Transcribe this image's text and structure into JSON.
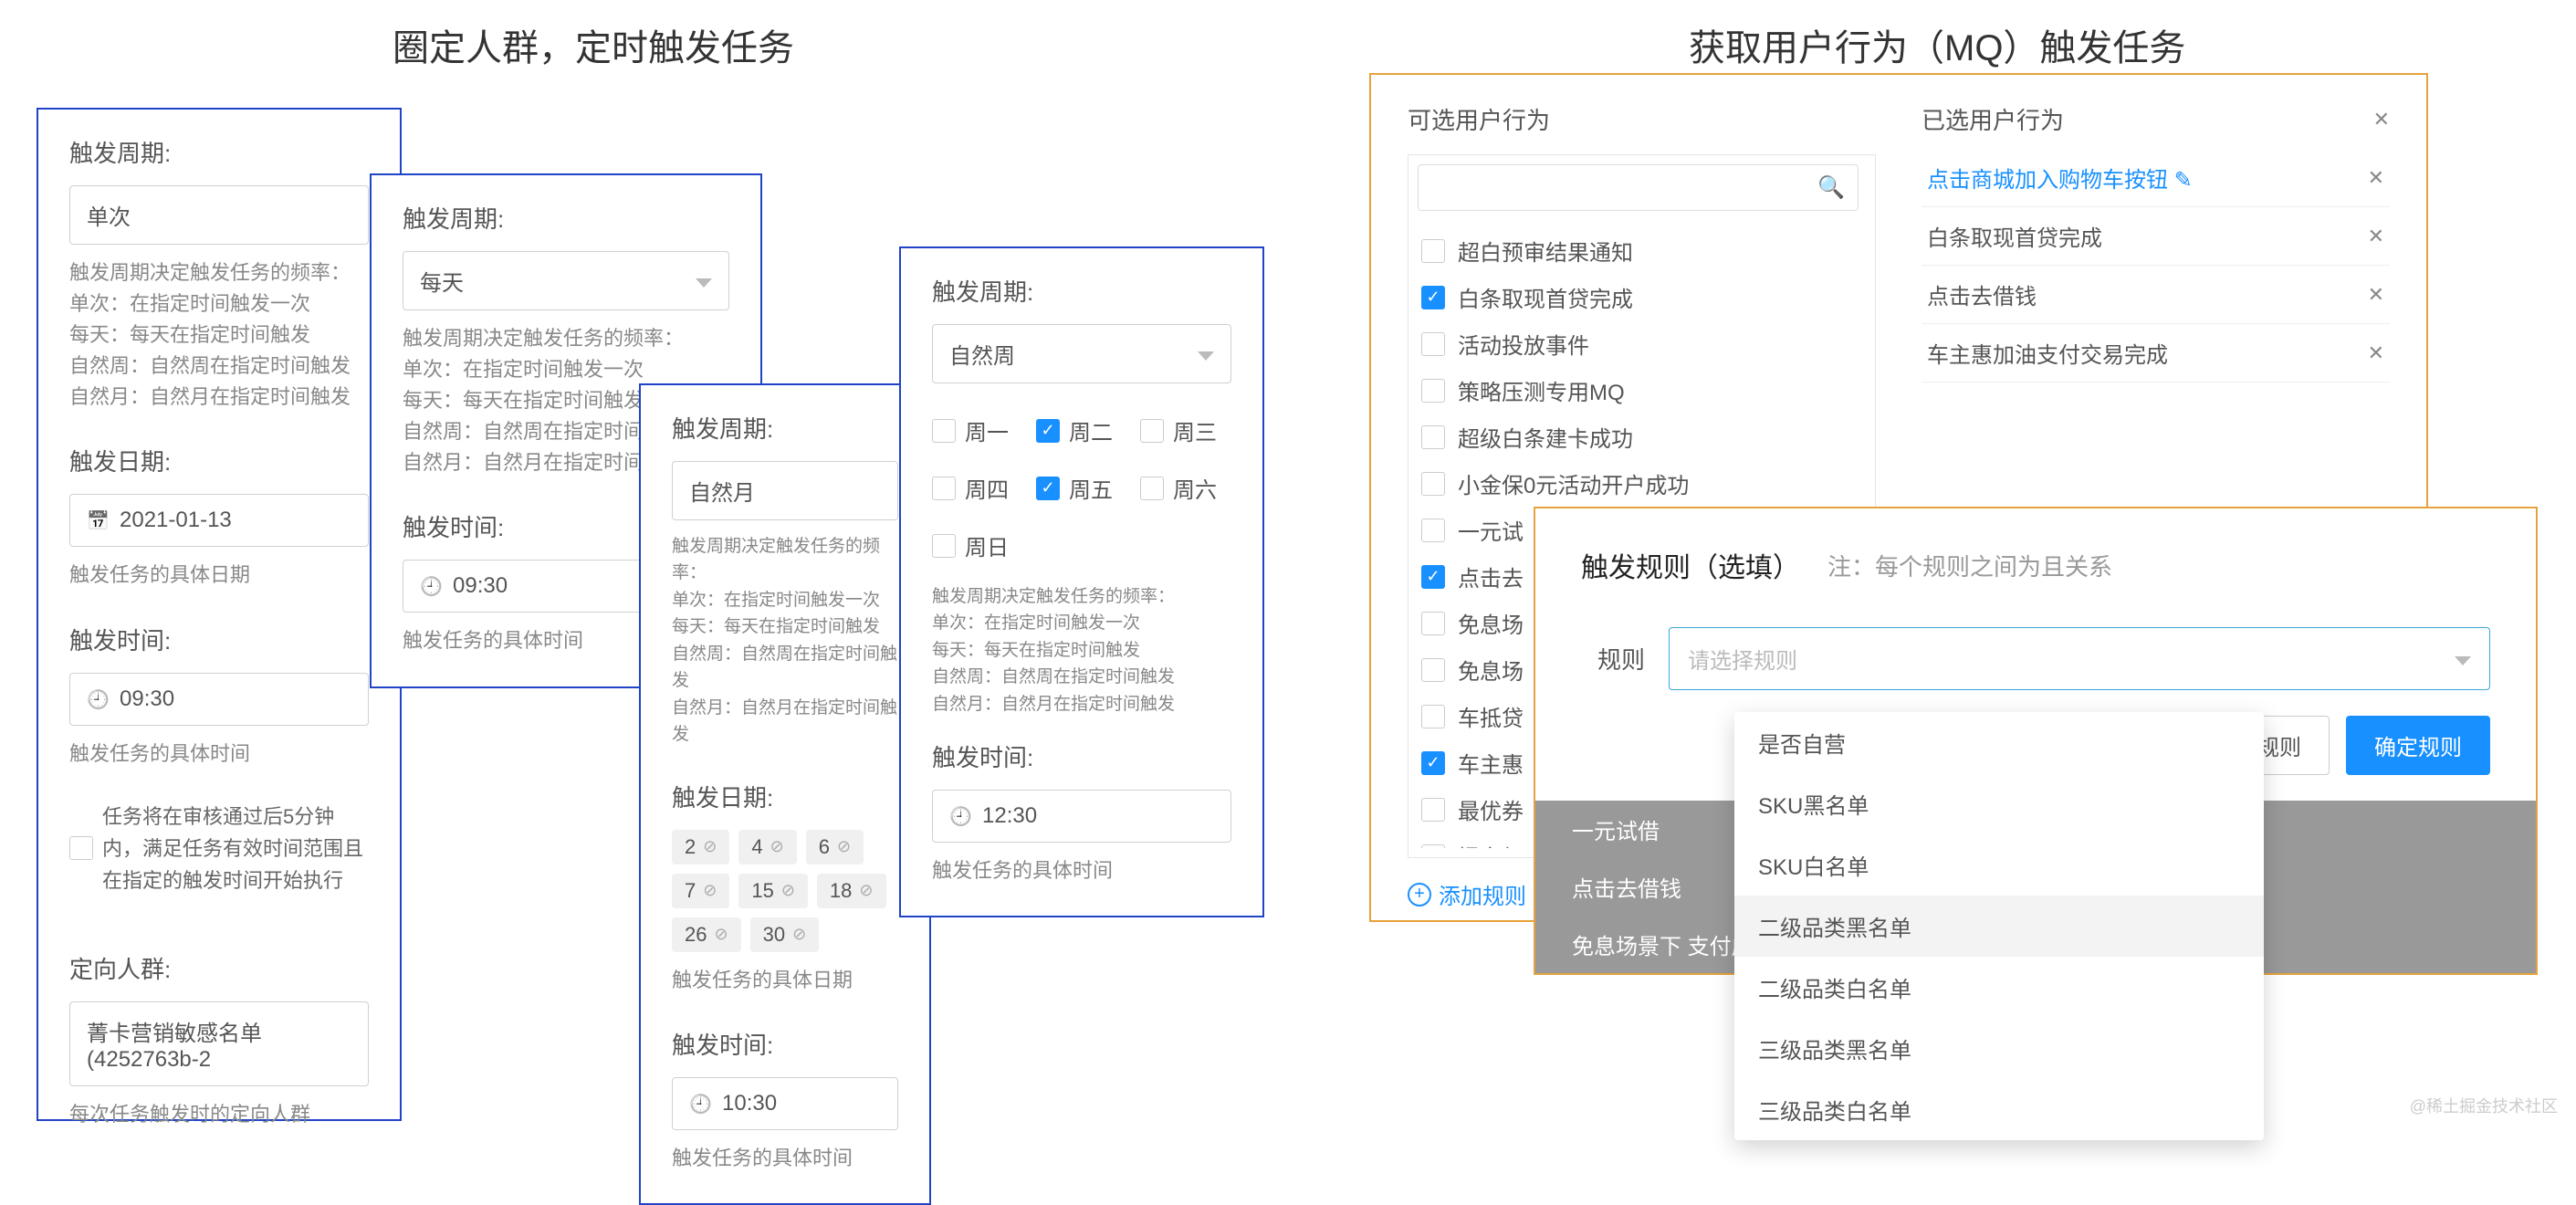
{
  "left": {
    "title": "圈定人群，定时触发任务",
    "card1": {
      "period_label": "触发周期:",
      "period_value": "单次",
      "period_desc": "触发周期决定触发任务的频率：\n单次：在指定时间触发一次\n每天：每天在指定时间触发\n自然周：自然周在指定时间触发\n自然月：自然月在指定时间触发",
      "date_label": "触发日期:",
      "date_value": "2021-01-13",
      "date_desc": "触发任务的具体日期",
      "time_label": "触发时间:",
      "time_value": "09:30",
      "time_desc": "触发任务的具体时间",
      "audit_note": "任务将在审核通过后5分钟内，满足任务有效时间范围且在指定的触发时间开始执行",
      "audience_label": "定向人群:",
      "audience_value": "菁卡营销敏感名单 (4252763b-2",
      "audience_desc": "每次任务触发时的定向人群"
    },
    "card2": {
      "period_label": "触发周期:",
      "period_value": "每天",
      "period_desc": "触发周期决定触发任务的频率：\n单次：在指定时间触发一次\n每天：每天在指定时间触发\n自然周：自然周在指定时间触\n自然月：自然月在指定时间触",
      "time_label": "触发时间:",
      "time_value": "09:30",
      "time_desc": "触发任务的具体时间"
    },
    "card3": {
      "period_label": "触发周期:",
      "period_value": "自然月",
      "period_desc": "触发周期决定触发任务的频率：\n单次：在指定时间触发一次\n每天：每天在指定时间触发\n自然周：自然周在指定时间触发\n自然月：自然月在指定时间触发",
      "date_label": "触发日期:",
      "date_chips": [
        "2",
        "4",
        "6",
        "7",
        "15",
        "18",
        "26",
        "30"
      ],
      "date_desc": "触发任务的具体日期",
      "time_label": "触发时间:",
      "time_value": "10:30",
      "time_desc": "触发任务的具体时间"
    },
    "card4": {
      "period_label": "触发周期:",
      "period_value": "自然周",
      "weeks": [
        {
          "label": "周一",
          "on": false
        },
        {
          "label": "周二",
          "on": true
        },
        {
          "label": "周三",
          "on": false
        },
        {
          "label": "周四",
          "on": false
        },
        {
          "label": "周五",
          "on": true
        },
        {
          "label": "周六",
          "on": false
        },
        {
          "label": "周日",
          "on": false
        }
      ],
      "period_desc": "触发周期决定触发任务的频率：\n单次：在指定时间触发一次\n每天：每天在指定时间触发\n自然周：自然周在指定时间触发\n自然月：自然月在指定时间触发",
      "time_label": "触发时间:",
      "time_value": "12:30",
      "time_desc": "触发任务的具体时间"
    }
  },
  "right": {
    "title": "获取用户行为（MQ）触发任务",
    "available_title": "可选用户行为",
    "selected_title": "已选用户行为",
    "options": [
      {
        "label": "超白预审结果通知",
        "on": false
      },
      {
        "label": "白条取现首贷完成",
        "on": true
      },
      {
        "label": "活动投放事件",
        "on": false
      },
      {
        "label": "策略压测专用MQ",
        "on": false
      },
      {
        "label": "超级白条建卡成功",
        "on": false
      },
      {
        "label": "小金保0元活动开户成功",
        "on": false
      },
      {
        "label": "一元试",
        "on": false
      },
      {
        "label": "点击去",
        "on": true
      },
      {
        "label": "免息场",
        "on": false
      },
      {
        "label": "免息场",
        "on": false
      },
      {
        "label": "车抵贷",
        "on": false
      },
      {
        "label": "车主惠",
        "on": true
      },
      {
        "label": "最优券",
        "on": false
      },
      {
        "label": "提交超",
        "on": false
      }
    ],
    "selected": [
      {
        "label": "点击商城加入购物车按钮 ✎",
        "link": true
      },
      {
        "label": "白条取现首贷完成",
        "link": false
      },
      {
        "label": "点击去借钱",
        "link": false
      },
      {
        "label": "车主惠加油支付交易完成",
        "link": false
      }
    ],
    "add_rule": "添加规则",
    "gray_items": [
      "一元试借",
      "点击去借钱",
      "免息场景下 支付成"
    ],
    "rules": {
      "title": "触发规则（选填）",
      "hint": "注：每个规则之间为且关系",
      "rule_label": "规则",
      "placeholder": "请选择规则",
      "dropdown": [
        "是否自营",
        "SKU黑名单",
        "SKU白名单",
        "二级品类黑名单",
        "二级品类白名单",
        "三级品类黑名单",
        "三级品类白名单"
      ],
      "btn_cancel": "不设置规则",
      "btn_ok": "确定规则"
    }
  },
  "watermark": "@稀土掘金技术社区"
}
